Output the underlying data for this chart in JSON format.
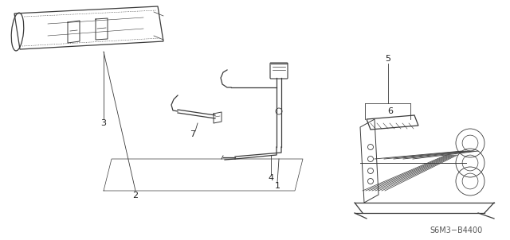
{
  "part_number": "S6M3−B4400",
  "background_color": "#ffffff",
  "line_color": "#3a3a3a",
  "label_color": "#222222",
  "figsize": [
    6.4,
    3.02
  ],
  "dpi": 100
}
